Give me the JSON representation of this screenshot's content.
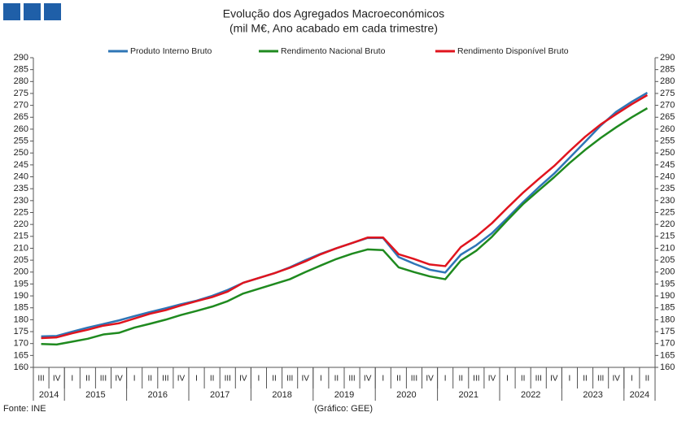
{
  "chart_data": {
    "type": "line",
    "title": "Evolução dos Agregados Macroeconómicos",
    "subtitle": "(mil M€, Ano acabado em cada trimestre)",
    "categories": [
      "III",
      "IV",
      "I",
      "II",
      "III",
      "IV",
      "I",
      "II",
      "III",
      "IV",
      "I",
      "II",
      "III",
      "IV",
      "I",
      "II",
      "III",
      "IV",
      "I",
      "II",
      "III",
      "IV",
      "I",
      "II",
      "III",
      "IV",
      "I",
      "II",
      "III",
      "IV",
      "I",
      "II",
      "III",
      "IV",
      "I",
      "II",
      "III",
      "IV",
      "I",
      "II"
    ],
    "year_groups": [
      {
        "label": "2014",
        "quarters": 2
      },
      {
        "label": "2015",
        "quarters": 4
      },
      {
        "label": "2016",
        "quarters": 4
      },
      {
        "label": "2017",
        "quarters": 4
      },
      {
        "label": "2018",
        "quarters": 4
      },
      {
        "label": "2019",
        "quarters": 4
      },
      {
        "label": "2020",
        "quarters": 4
      },
      {
        "label": "2021",
        "quarters": 4
      },
      {
        "label": "2022",
        "quarters": 4
      },
      {
        "label": "2023",
        "quarters": 4
      },
      {
        "label": "2024",
        "quarters": 2
      }
    ],
    "series": [
      {
        "name": "Produto Interno Bruto",
        "color": "#2e75b6",
        "values": [
          173,
          173.2,
          175,
          176.7,
          178.2,
          179.7,
          181.5,
          183.2,
          184.8,
          186.5,
          188,
          190,
          192.5,
          195.5,
          197.5,
          199.5,
          202,
          205,
          207.7,
          210,
          212.2,
          214.3,
          214.3,
          206.3,
          203.5,
          201,
          199.8,
          207.3,
          211.3,
          216.3,
          222.7,
          229.3,
          235.5,
          241.3,
          248,
          254.7,
          261.5,
          267.3,
          271.5,
          275.3
        ]
      },
      {
        "name": "Rendimento Nacional Bruto",
        "color": "#1f8a1f",
        "values": [
          169.8,
          169.6,
          170.8,
          172,
          173.8,
          174.5,
          176.7,
          178.3,
          180,
          182,
          183.7,
          185.5,
          187.8,
          191,
          193,
          195,
          197,
          200,
          202.8,
          205.5,
          207.7,
          209.5,
          209.2,
          202,
          200,
          198.2,
          197,
          204.8,
          209,
          214.8,
          221.8,
          228.5,
          234.2,
          239.8,
          245.8,
          251.3,
          256.3,
          260.8,
          265,
          268.8
        ]
      },
      {
        "name": "Rendimento Disponível Bruto",
        "color": "#e0141e",
        "values": [
          172.3,
          172.6,
          174.3,
          175.8,
          177.5,
          178.5,
          180.5,
          182.5,
          184,
          186,
          187.8,
          189.5,
          191.8,
          195.5,
          197.5,
          199.5,
          201.8,
          204.5,
          207.5,
          210,
          212.2,
          214.5,
          214.5,
          207.5,
          205.5,
          203.2,
          202.5,
          210.5,
          215,
          220.5,
          227,
          233.3,
          239,
          244.5,
          250.8,
          256.8,
          262,
          266.3,
          270.5,
          274.3
        ]
      }
    ],
    "ylim": [
      160,
      290
    ],
    "yticks": [
      160,
      165,
      170,
      175,
      180,
      185,
      190,
      195,
      200,
      205,
      210,
      215,
      220,
      225,
      230,
      235,
      240,
      245,
      250,
      255,
      260,
      265,
      270,
      275,
      280,
      285,
      290
    ],
    "secondary_axis_mirror": true,
    "source": "Fonte: INE",
    "credit": "(Gráfico: GEE)"
  }
}
